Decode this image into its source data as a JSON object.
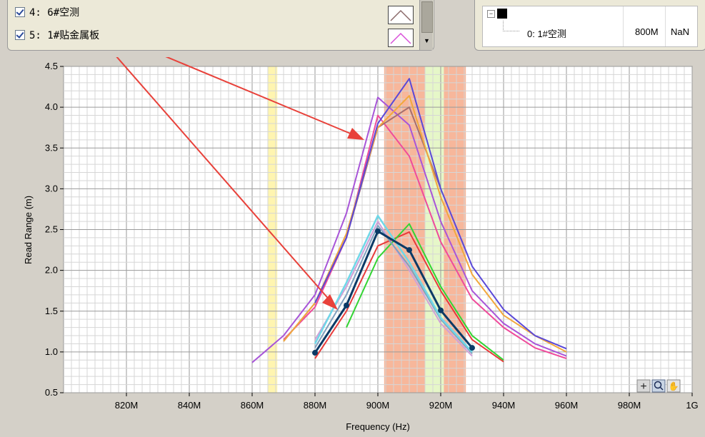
{
  "legend": {
    "items": [
      {
        "label": "4: 6#空测",
        "checked": true,
        "color": "#8b6a6a"
      },
      {
        "label": "5: 1#贴金属板",
        "checked": true,
        "color": "#d94fd9"
      }
    ],
    "scroll_icon": "triangle-down-icon"
  },
  "tree": {
    "node_label": "0: 1#空测",
    "node_freq": "800M",
    "node_value": "NaN",
    "expand_icon": "minus-box-icon"
  },
  "toolbar": {
    "icons": [
      "crosshair-icon",
      "zoom-icon",
      "hand-pan-icon"
    ]
  },
  "chart_data": {
    "type": "line",
    "xlabel": "Frequency (Hz)",
    "ylabel": "Read Range (m)",
    "xlim": [
      800,
      1000
    ],
    "ylim": [
      0.5,
      4.5
    ],
    "x_tick_labels": [
      "820M",
      "840M",
      "860M",
      "880M",
      "900M",
      "920M",
      "940M",
      "960M",
      "980M",
      "1G"
    ],
    "x_tick_values": [
      820,
      840,
      860,
      880,
      900,
      920,
      940,
      960,
      980,
      1000
    ],
    "y_tick_labels": [
      "0.5",
      "1.0",
      "1.5",
      "2.0",
      "2.5",
      "3.0",
      "3.5",
      "4.0",
      "4.5"
    ],
    "y_tick_values": [
      0.5,
      1.0,
      1.5,
      2.0,
      2.5,
      3.0,
      3.5,
      4.0,
      4.5
    ],
    "grid": true,
    "bands": [
      {
        "from": 865,
        "to": 868,
        "color": "#fff5b0"
      },
      {
        "from": 902,
        "to": 915,
        "color": "#f7b79b"
      },
      {
        "from": 915,
        "to": 921,
        "color": "#e6f7c8"
      },
      {
        "from": 921,
        "to": 928,
        "color": "#f7b79b"
      }
    ],
    "series": [
      {
        "color": "#a855d8",
        "width": 2,
        "x": [
          860,
          870,
          880,
          890,
          900,
          910,
          920,
          930,
          940,
          950,
          960
        ],
        "y": [
          0.87,
          1.2,
          1.7,
          2.7,
          4.12,
          3.78,
          2.6,
          1.75,
          1.35,
          1.1,
          0.95
        ]
      },
      {
        "color": "#ef4b9b",
        "width": 2,
        "x": [
          870,
          880,
          890,
          900,
          910,
          920,
          930,
          940,
          950,
          960
        ],
        "y": [
          1.15,
          1.55,
          2.4,
          3.9,
          3.4,
          2.35,
          1.65,
          1.3,
          1.05,
          0.92
        ]
      },
      {
        "color": "#a56f6f",
        "width": 2,
        "x": [
          870,
          880,
          890,
          900,
          910,
          920
        ],
        "y": [
          1.13,
          1.6,
          2.4,
          3.75,
          4.0,
          3.0
        ]
      },
      {
        "color": "#f2a83d",
        "width": 2,
        "x": [
          870,
          880,
          890,
          900,
          910,
          920,
          930,
          940,
          950,
          960
        ],
        "y": [
          1.13,
          1.6,
          2.45,
          3.75,
          4.14,
          2.9,
          1.95,
          1.45,
          1.2,
          1.0
        ]
      },
      {
        "color": "#5a48d8",
        "width": 2,
        "x": [
          880,
          890,
          900,
          910,
          920,
          930,
          940,
          950,
          960
        ],
        "y": [
          1.6,
          2.4,
          3.8,
          4.35,
          3.0,
          2.05,
          1.52,
          1.2,
          1.04
        ]
      },
      {
        "color": "#d0a0d8",
        "width": 2,
        "x": [
          880,
          890,
          900,
          910,
          920,
          930
        ],
        "y": [
          1.15,
          1.8,
          2.6,
          2.0,
          1.35,
          0.95
        ]
      },
      {
        "color": "#e83a3a",
        "width": 2,
        "x": [
          880,
          890,
          900,
          910,
          920,
          930,
          940
        ],
        "y": [
          0.92,
          1.5,
          2.3,
          2.47,
          1.75,
          1.15,
          0.88
        ]
      },
      {
        "color": "#33d433",
        "width": 2,
        "x": [
          890,
          900,
          910,
          920,
          930,
          940
        ],
        "y": [
          1.3,
          2.15,
          2.57,
          1.8,
          1.2,
          0.9
        ]
      },
      {
        "color": "#7fa0bf",
        "width": 2,
        "x": [
          880,
          890,
          900,
          910,
          920,
          930
        ],
        "y": [
          1.05,
          1.7,
          2.55,
          2.05,
          1.4,
          0.98
        ]
      },
      {
        "color": "#6fd8e8",
        "width": 2.5,
        "x": [
          880,
          890,
          900,
          910,
          920,
          930
        ],
        "y": [
          1.1,
          1.85,
          2.67,
          2.1,
          1.42,
          1.0
        ]
      },
      {
        "color": "#0b3a66",
        "width": 3,
        "markers": true,
        "x": [
          880,
          890,
          900,
          910,
          920,
          930
        ],
        "y": [
          0.99,
          1.57,
          2.48,
          2.25,
          1.51,
          1.05
        ]
      }
    ]
  }
}
